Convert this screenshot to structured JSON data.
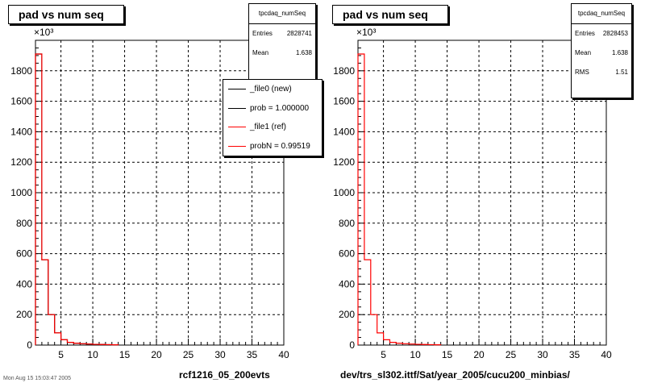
{
  "chart_data": [
    {
      "type": "histogram",
      "title": "pad vs num seq",
      "multiplier_label": "×10³",
      "xlim": [
        1,
        40
      ],
      "ylim": [
        0,
        2000
      ],
      "x_ticks": [
        5,
        10,
        15,
        20,
        25,
        30,
        35,
        40
      ],
      "y_ticks": [
        0,
        200,
        400,
        600,
        800,
        1000,
        1200,
        1400,
        1600,
        1800
      ],
      "grid": true,
      "stats": {
        "name": "tpcdaq_numSeq",
        "entries_label": "Entries",
        "entries": "2828741",
        "mean_label": "Mean",
        "mean": "1.638"
      },
      "legend": [
        {
          "label": "_file0 (new)",
          "color": "#000000"
        },
        {
          "label": "prob = 1.000000",
          "color": "#000000"
        },
        {
          "label": "_file1 (ref)",
          "color": "#ff0000"
        },
        {
          "label": "probN = 0.99519",
          "color": "#ff0000"
        }
      ],
      "series": [
        {
          "name": "_file0 (new)",
          "color": "#000000",
          "bin_edges": [
            1,
            2,
            3,
            4,
            5,
            6,
            7,
            8,
            9,
            10,
            11,
            12,
            13,
            14
          ],
          "values": [
            1910,
            560,
            200,
            80,
            35,
            18,
            12,
            9,
            7,
            5,
            4,
            3,
            2
          ]
        },
        {
          "name": "_file1 (ref)",
          "color": "#ff0000",
          "bin_edges": [
            1,
            2,
            3,
            4,
            5,
            6,
            7,
            8,
            9,
            10,
            11,
            12,
            13,
            14
          ],
          "values": [
            1910,
            560,
            200,
            80,
            35,
            18,
            12,
            9,
            7,
            5,
            4,
            3,
            2
          ]
        }
      ],
      "caption": "rcf1216_05_200evts"
    },
    {
      "type": "histogram",
      "title": "pad vs num seq",
      "multiplier_label": "×10³",
      "xlim": [
        1,
        40
      ],
      "ylim": [
        0,
        2000
      ],
      "x_ticks": [
        5,
        10,
        15,
        20,
        25,
        30,
        35,
        40
      ],
      "y_ticks": [
        0,
        200,
        400,
        600,
        800,
        1000,
        1200,
        1400,
        1600,
        1800
      ],
      "grid": true,
      "stats": {
        "name": "tpcdaq_numSeq",
        "entries_label": "Entries",
        "entries": "2828453",
        "mean_label": "Mean",
        "mean": "1.638",
        "rms_label": "RMS",
        "rms": "1.51"
      },
      "series": [
        {
          "name": "",
          "color": "#ff0000",
          "bin_edges": [
            1,
            2,
            3,
            4,
            5,
            6,
            7,
            8,
            9,
            10,
            11,
            12,
            13,
            14
          ],
          "values": [
            1910,
            560,
            200,
            80,
            35,
            18,
            12,
            9,
            7,
            5,
            4,
            3,
            2
          ]
        }
      ],
      "caption": "dev/trs_sl302.ittf/Sat/year_2005/cucu200_minbias/"
    }
  ],
  "footer_text": "Mon Aug 15 15:03:47 2005"
}
